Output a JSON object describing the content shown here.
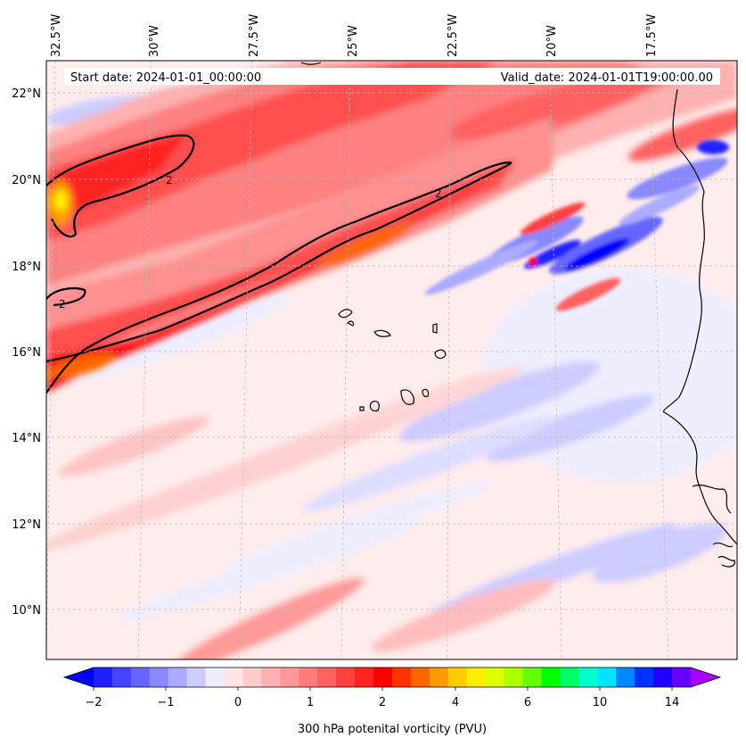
{
  "header": {
    "start_date": "Start date: 2024-01-01_00:00:00",
    "valid_date": "Valid_date: 2024-01-01T19:00:00.00"
  },
  "longitude_labels": [
    "32.5°W",
    "30°W",
    "27.5°W",
    "25°W",
    "22.5°W",
    "20°W",
    "17.5°W"
  ],
  "latitude_labels": [
    "22°N",
    "20°N",
    "18°N",
    "16°N",
    "14°N",
    "12°N",
    "10°N"
  ],
  "contour_labels": [
    "2",
    "2",
    "2"
  ],
  "colorbar": {
    "label": "300 hPa potenital vorticity (PVU)",
    "tick_labels": [
      "−2",
      "−1",
      "0",
      "1",
      "2",
      "4",
      "6",
      "10",
      "14"
    ],
    "colors": [
      "#0000ff",
      "#2020ff",
      "#4444ff",
      "#6666ff",
      "#8888ff",
      "#aaaaff",
      "#ccccff",
      "#eeeeff",
      "#ffe6e6",
      "#ffcccc",
      "#ffb0b0",
      "#ff9898",
      "#ff7c7c",
      "#ff6060",
      "#ff4040",
      "#ff2424",
      "#ff0000",
      "#ff3300",
      "#ff6600",
      "#ff9900",
      "#ffcc00",
      "#ffee00",
      "#ddff00",
      "#aaff00",
      "#66ff00",
      "#00ff00",
      "#00ff66",
      "#00ffcc",
      "#00e5ff",
      "#0088ff",
      "#0033ff",
      "#2200ff",
      "#6600ff",
      "#aa00ff"
    ]
  }
}
